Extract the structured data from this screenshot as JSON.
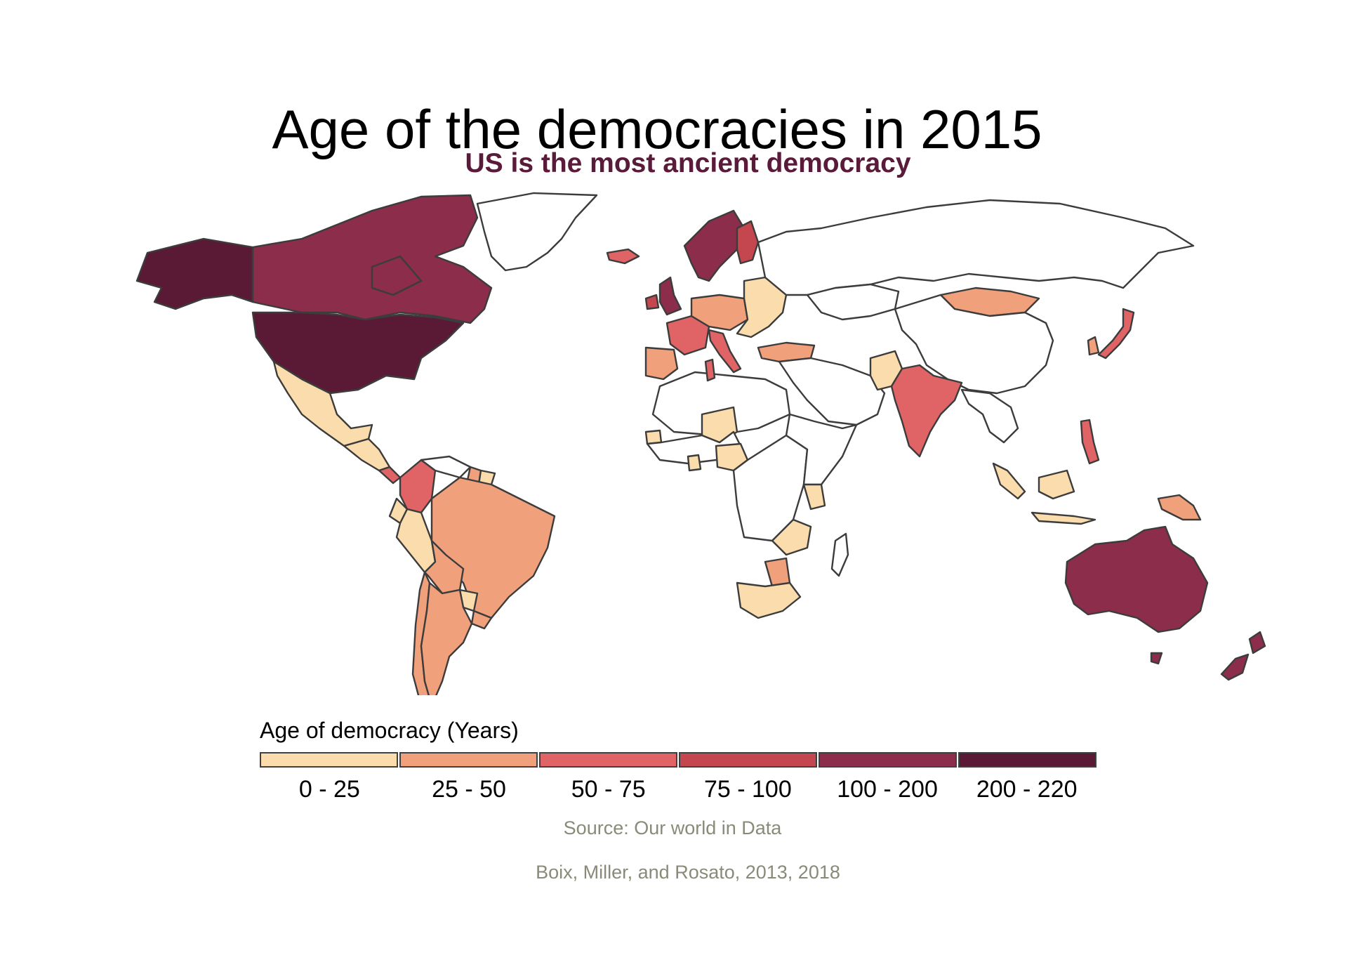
{
  "title": "Age of the democracies in 2015",
  "subtitle": "US is the most ancient democracy",
  "legend": {
    "title": "Age of democracy (Years)",
    "bins": [
      {
        "label": "0 - 25",
        "color": "#fbdcac"
      },
      {
        "label": "25 - 50",
        "color": "#f0a07a"
      },
      {
        "label": "50 - 75",
        "color": "#e06466"
      },
      {
        "label": "75 - 100",
        "color": "#c4474f"
      },
      {
        "label": "100 - 200",
        "color": "#8b2d4b"
      },
      {
        "label": "200 - 220",
        "color": "#5a1a36"
      }
    ]
  },
  "source_lines": [
    "Source: Our world in Data",
    "Boix, Miller, and Rosato, 2013, 2018"
  ],
  "map": {
    "no_data_color": "#ffffff",
    "border_color": "#3c3c3c",
    "regions": [
      {
        "name": "United States",
        "bin": "200 - 220"
      },
      {
        "name": "Alaska",
        "bin": "200 - 220"
      },
      {
        "name": "Canada",
        "bin": "100 - 200"
      },
      {
        "name": "Mexico",
        "bin": "0 - 25"
      },
      {
        "name": "Central America",
        "bin": "0 - 25"
      },
      {
        "name": "Costa Rica",
        "bin": "50 - 75"
      },
      {
        "name": "Colombia",
        "bin": "50 - 75"
      },
      {
        "name": "Venezuela",
        "bin": null
      },
      {
        "name": "Guyana",
        "bin": "25 - 50"
      },
      {
        "name": "Suriname",
        "bin": "0 - 25"
      },
      {
        "name": "Ecuador",
        "bin": "0 - 25"
      },
      {
        "name": "Peru",
        "bin": "0 - 25"
      },
      {
        "name": "Brazil",
        "bin": "25 - 50"
      },
      {
        "name": "Bolivia",
        "bin": "25 - 50"
      },
      {
        "name": "Paraguay",
        "bin": "0 - 25"
      },
      {
        "name": "Uruguay",
        "bin": "25 - 50"
      },
      {
        "name": "Chile",
        "bin": "25 - 50"
      },
      {
        "name": "Argentina",
        "bin": "25 - 50"
      },
      {
        "name": "Greenland",
        "bin": null
      },
      {
        "name": "Iceland",
        "bin": "50 - 75"
      },
      {
        "name": "Norway-Sweden",
        "bin": "100 - 200"
      },
      {
        "name": "Finland",
        "bin": "75 - 100"
      },
      {
        "name": "United Kingdom",
        "bin": "100 - 200"
      },
      {
        "name": "Ireland",
        "bin": "75 - 100"
      },
      {
        "name": "France",
        "bin": "50 - 75"
      },
      {
        "name": "Iberia",
        "bin": "25 - 50"
      },
      {
        "name": "Central Europe",
        "bin": "25 - 50"
      },
      {
        "name": "Italy",
        "bin": "50 - 75"
      },
      {
        "name": "Eastern Europe",
        "bin": "0 - 25"
      },
      {
        "name": "Turkey",
        "bin": "25 - 50"
      },
      {
        "name": "Russia",
        "bin": null
      },
      {
        "name": "Mongolia",
        "bin": "25 - 50"
      },
      {
        "name": "China",
        "bin": null
      },
      {
        "name": "Kazakhstan",
        "bin": null
      },
      {
        "name": "Middle East",
        "bin": null
      },
      {
        "name": "Pakistan",
        "bin": "0 - 25"
      },
      {
        "name": "India",
        "bin": "50 - 75"
      },
      {
        "name": "Southeast Asia",
        "bin": null
      },
      {
        "name": "Japan",
        "bin": "50 - 75"
      },
      {
        "name": "South Korea",
        "bin": "25 - 50"
      },
      {
        "name": "Philippines",
        "bin": "50 - 75"
      },
      {
        "name": "Indonesia",
        "bin": "0 - 25"
      },
      {
        "name": "Papua New Guinea",
        "bin": "25 - 50"
      },
      {
        "name": "Australia",
        "bin": "100 - 200"
      },
      {
        "name": "New Zealand",
        "bin": "100 - 200"
      },
      {
        "name": "North Africa",
        "bin": null
      },
      {
        "name": "Tunisia",
        "bin": "50 - 75"
      },
      {
        "name": "West Africa",
        "bin": null
      },
      {
        "name": "Mali",
        "bin": "0 - 25"
      },
      {
        "name": "Senegal",
        "bin": "0 - 25"
      },
      {
        "name": "Ghana",
        "bin": "0 - 25"
      },
      {
        "name": "Nigeria",
        "bin": "0 - 25"
      },
      {
        "name": "Central Africa",
        "bin": null
      },
      {
        "name": "East Africa",
        "bin": null
      },
      {
        "name": "Kenya",
        "bin": "0 - 25"
      },
      {
        "name": "Zambia-Malawi",
        "bin": "0 - 25"
      },
      {
        "name": "Botswana",
        "bin": "25 - 50"
      },
      {
        "name": "South Africa",
        "bin": "0 - 25"
      },
      {
        "name": "Madagascar",
        "bin": null
      }
    ]
  }
}
